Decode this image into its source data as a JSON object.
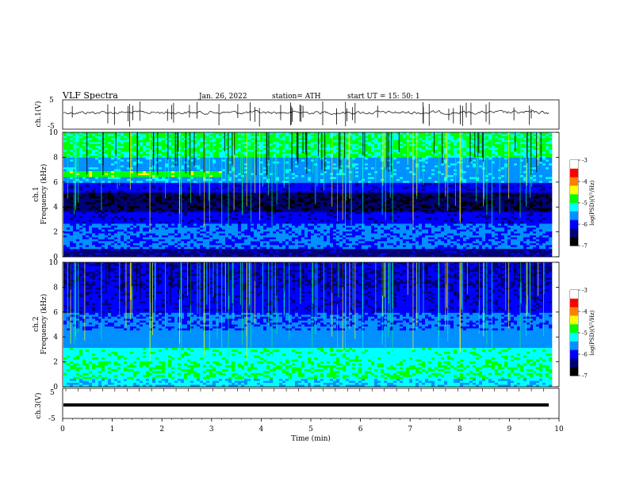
{
  "header": {
    "title": "VLF  Spectra",
    "date": "Jan. 26, 2022",
    "station": "station= ATH",
    "start": "start  UT  =    15: 50: 1"
  },
  "chart_data": [
    {
      "type": "line",
      "name": "ch1-waveform",
      "ylabel": "ch.1(V)",
      "ylim": [
        -5,
        5
      ],
      "yticks": [
        "5",
        "-5"
      ],
      "xlim": [
        0,
        10
      ],
      "color": "#000000"
    },
    {
      "type": "heatmap",
      "name": "ch1-spectrogram",
      "ylabel": "ch.1\nFrequency (kHz)",
      "ylabel_lines": [
        "ch.1",
        "Frequency  (kHz)"
      ],
      "ylim": [
        0,
        10
      ],
      "yticks": [
        "0",
        "2",
        "4",
        "6",
        "8",
        "10"
      ],
      "xlim": [
        0,
        10
      ],
      "data_end_min": 9.8,
      "colorbar": {
        "label": "log(PSD)(V²/Hz)",
        "ticks": [
          "-3",
          "-4",
          "-5",
          "-6",
          "-7"
        ],
        "range": [
          -7,
          -3
        ]
      }
    },
    {
      "type": "heatmap",
      "name": "ch2-spectrogram",
      "ylabel_lines": [
        "ch.2",
        "Frequency  (kHz)"
      ],
      "ylim": [
        0,
        10
      ],
      "yticks": [
        "0",
        "2",
        "4",
        "6",
        "8",
        "10"
      ],
      "xlim": [
        0,
        10
      ],
      "data_end_min": 9.8,
      "colorbar": {
        "label": "log(PSD)(V²/Hz)",
        "ticks": [
          "-3",
          "-4",
          "-5",
          "-6",
          "-7"
        ],
        "range": [
          -7,
          -3
        ]
      }
    },
    {
      "type": "line",
      "name": "ch3-waveform",
      "ylabel": "ch.3(V)",
      "ylim": [
        -5,
        5
      ],
      "yticks": [
        "5",
        "-5"
      ],
      "xlim": [
        0,
        10
      ],
      "color": "#000000"
    }
  ],
  "xaxis": {
    "label": "Time  (min)",
    "ticks": [
      "0",
      "1",
      "2",
      "3",
      "4",
      "5",
      "6",
      "7",
      "8",
      "9",
      "10"
    ]
  },
  "colormap": [
    "#000000",
    "#00007a",
    "#0000ff",
    "#0090ff",
    "#00ffff",
    "#00ff00",
    "#ffff00",
    "#ff8000",
    "#ff0000",
    "#ffffff"
  ]
}
